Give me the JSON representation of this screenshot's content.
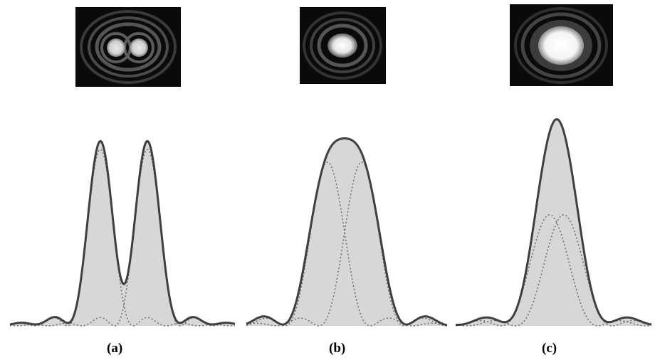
{
  "captions": {
    "a": "(a)",
    "b": "(b)",
    "c": "(c)"
  },
  "colors": {
    "fill": "#d7d7d7",
    "curve": "#3f3f3f",
    "component": "#6a6a6a",
    "background": "#ffffff",
    "thumb_background": "#0a0a0a"
  },
  "panels": [
    {
      "id": "a",
      "state": "resolved",
      "peak_separation": "large"
    },
    {
      "id": "b",
      "state": "just resolved",
      "peak_separation": "medium"
    },
    {
      "id": "c",
      "state": "unresolved",
      "peak_separation": "small"
    }
  ]
}
